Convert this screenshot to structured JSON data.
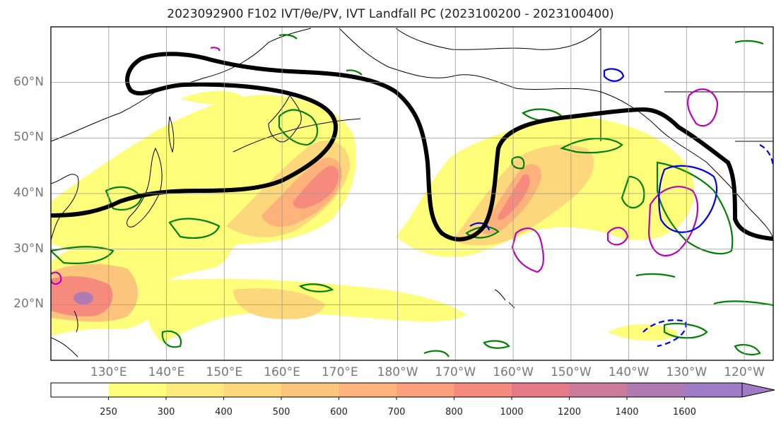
{
  "title": "2023092900 F102 IVT/θe/PV, IVT Landfall PC (2023100200 - 2023100400)",
  "map": {
    "projection": "PlateCarree",
    "lon_range_east": [
      120,
      245
    ],
    "lat_range": [
      10,
      70
    ],
    "lat_ticks": [
      {
        "value": 20,
        "label": "20°N"
      },
      {
        "value": 30,
        "label": "30°N"
      },
      {
        "value": 40,
        "label": "40°N"
      },
      {
        "value": 50,
        "label": "50°N"
      },
      {
        "value": 60,
        "label": "60°N"
      }
    ],
    "lon_ticks": [
      {
        "value": 130,
        "label": "130°E"
      },
      {
        "value": 140,
        "label": "140°E"
      },
      {
        "value": 150,
        "label": "150°E"
      },
      {
        "value": 160,
        "label": "160°E"
      },
      {
        "value": 170,
        "label": "170°E"
      },
      {
        "value": 180,
        "label": "180°W"
      },
      {
        "value": 190,
        "label": "170°W"
      },
      {
        "value": 200,
        "label": "160°W"
      },
      {
        "value": 210,
        "label": "150°W"
      },
      {
        "value": 220,
        "label": "140°W"
      },
      {
        "value": 230,
        "label": "130°W"
      },
      {
        "value": 240,
        "label": "120°W"
      }
    ],
    "grid": true
  },
  "colorbar": {
    "levels": [
      250,
      300,
      400,
      500,
      600,
      700,
      800,
      1000,
      1200,
      1400,
      1600
    ],
    "labels": [
      "250",
      "300",
      "400",
      "500",
      "600",
      "700",
      "800",
      "1000",
      "1200",
      "1400",
      "1600"
    ],
    "colors": [
      "#ffffff",
      "#fefe7a",
      "#fde97c",
      "#fdd77c",
      "#fdc57c",
      "#fdb27c",
      "#fd9e7c",
      "#f68a7c",
      "#e47a86",
      "#cc7a9a",
      "#b07ab4",
      "#a07ac4"
    ],
    "extend": "max"
  },
  "colors": {
    "ivt_line": "#000000",
    "theta_e": "#008000",
    "pv_positive": "#bb00bb",
    "pv_negative": "#0000ee",
    "coast": "#000000",
    "grid": "#999999"
  }
}
